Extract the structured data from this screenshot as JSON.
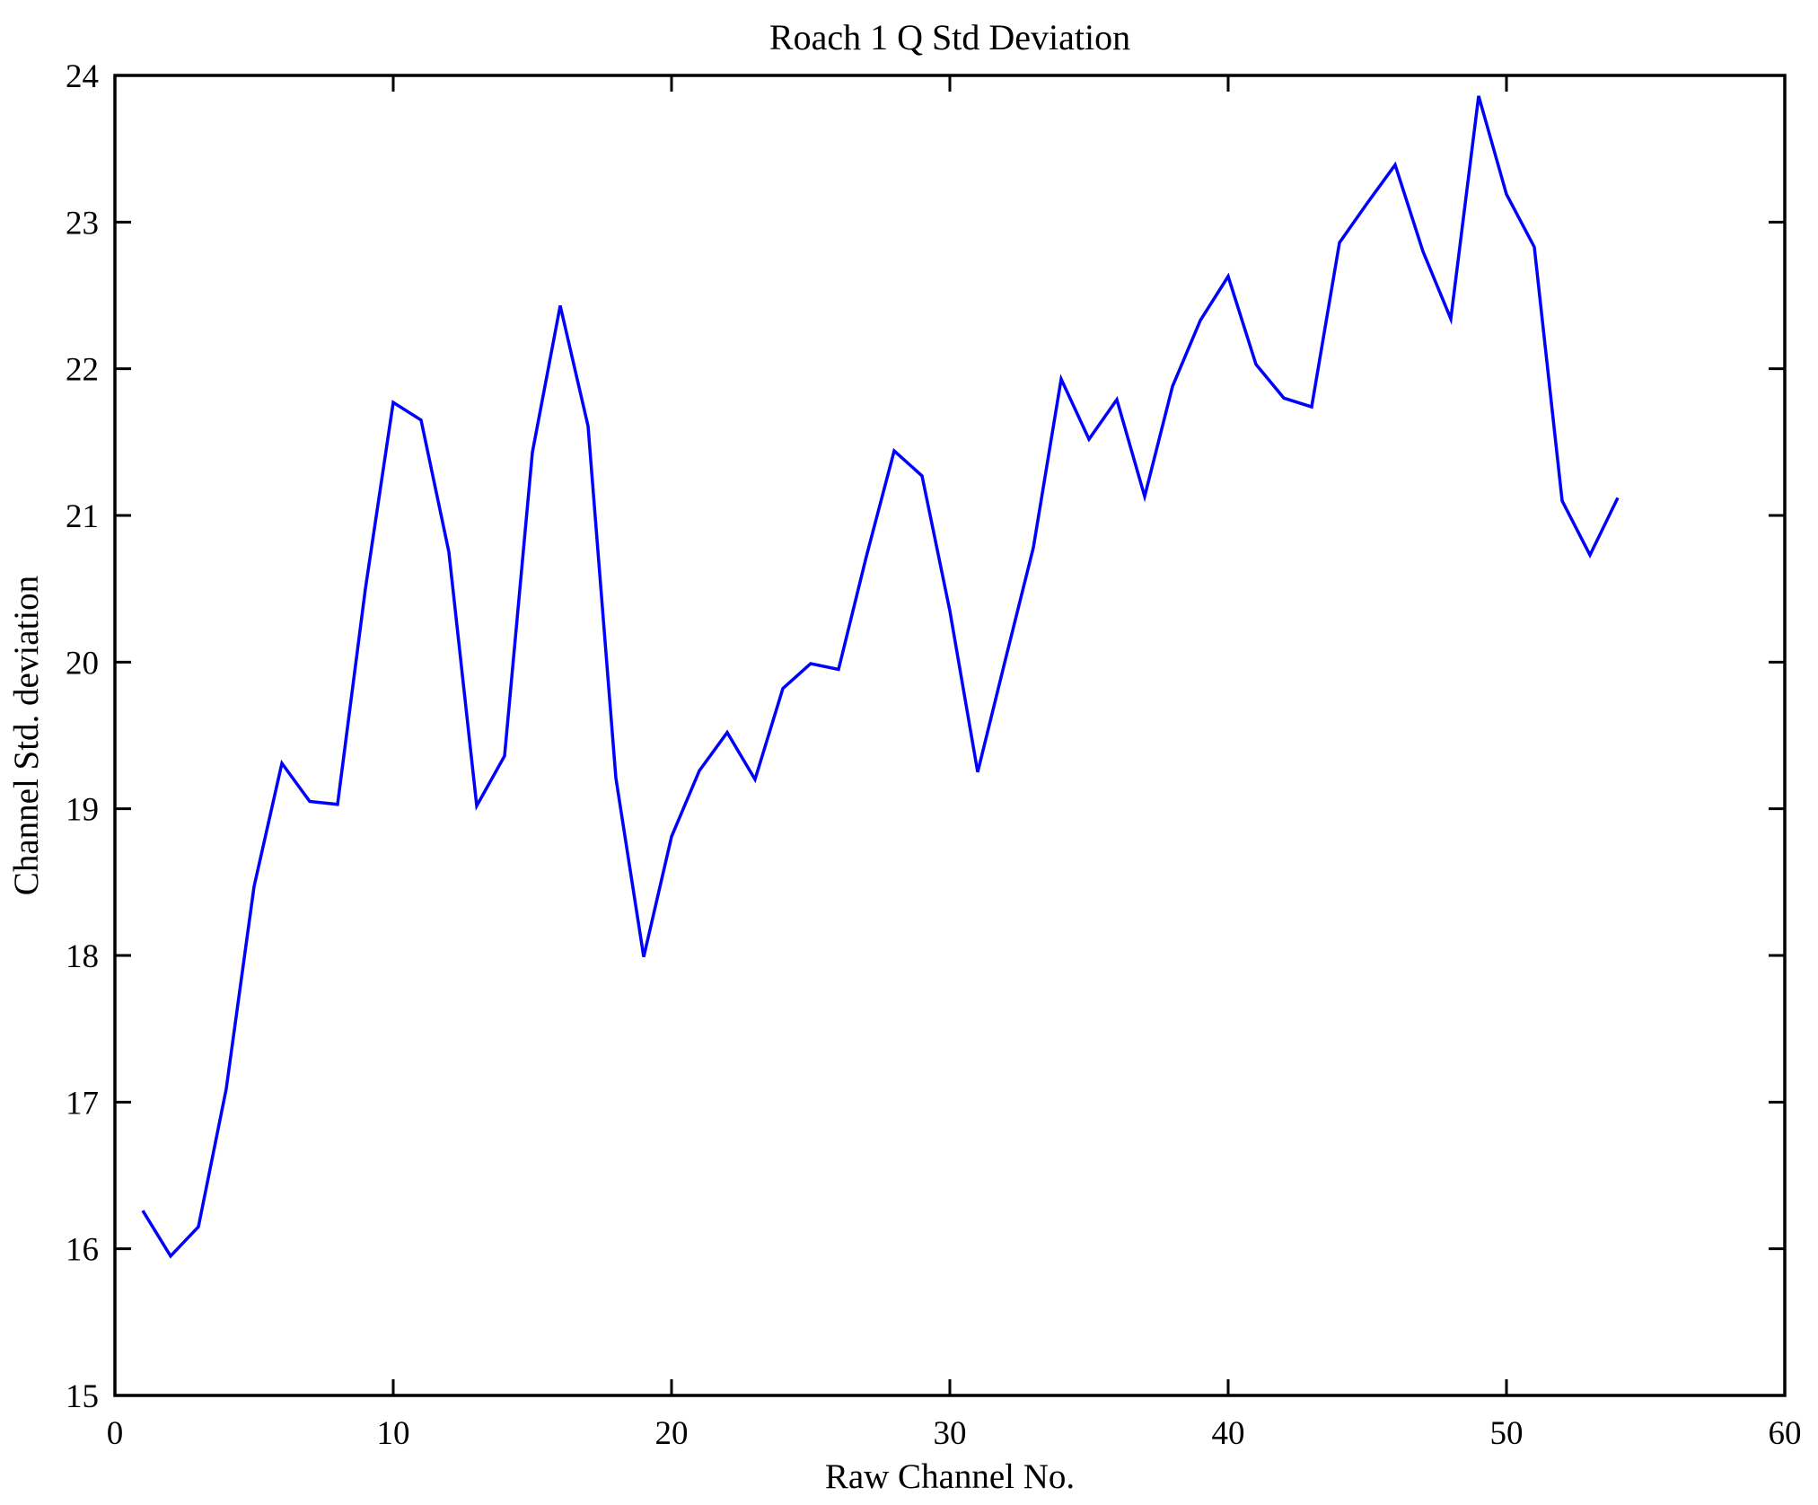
{
  "figure": {
    "title": "Roach 1 Q Std Deviation",
    "xlabel": "Raw Channel No.",
    "ylabel": "Channel Std. deviation"
  },
  "chart_data": {
    "type": "line",
    "title": "Roach 1 Q Std Deviation",
    "xlabel": "Raw Channel No.",
    "ylabel": "Channel Std. deviation",
    "xlim": [
      0,
      60
    ],
    "ylim": [
      15,
      24
    ],
    "xticks": [
      0,
      10,
      20,
      30,
      40,
      50,
      60
    ],
    "yticks": [
      15,
      16,
      17,
      18,
      19,
      20,
      21,
      22,
      23,
      24
    ],
    "grid": false,
    "legend_position": "none",
    "line_color": "#0000ff",
    "axis_color": "#000000",
    "background_color": "#ffffff",
    "x": [
      1,
      2,
      3,
      4,
      5,
      6,
      7,
      8,
      9,
      10,
      11,
      12,
      13,
      14,
      15,
      16,
      17,
      18,
      19,
      20,
      21,
      22,
      23,
      24,
      25,
      26,
      27,
      28,
      29,
      30,
      31,
      32,
      33,
      34,
      35,
      36,
      37,
      38,
      39,
      40,
      41,
      42,
      43,
      44,
      45,
      46,
      47,
      48,
      49,
      50,
      51,
      52,
      53,
      54
    ],
    "y": [
      16.26,
      15.95,
      16.15,
      17.09,
      18.47,
      19.31,
      19.05,
      19.03,
      20.5,
      21.77,
      21.65,
      20.75,
      19.02,
      19.36,
      21.43,
      22.43,
      21.61,
      19.21,
      17.99,
      18.81,
      19.26,
      19.52,
      19.2,
      19.82,
      19.99,
      19.95,
      20.72,
      21.44,
      21.27,
      20.35,
      19.25,
      20.02,
      20.78,
      21.93,
      21.52,
      21.79,
      21.13,
      21.88,
      22.33,
      22.63,
      22.03,
      21.8,
      21.74,
      22.86,
      23.13,
      23.39,
      22.8,
      22.34,
      23.86,
      23.19,
      22.83,
      21.1,
      20.73,
      21.12
    ]
  }
}
